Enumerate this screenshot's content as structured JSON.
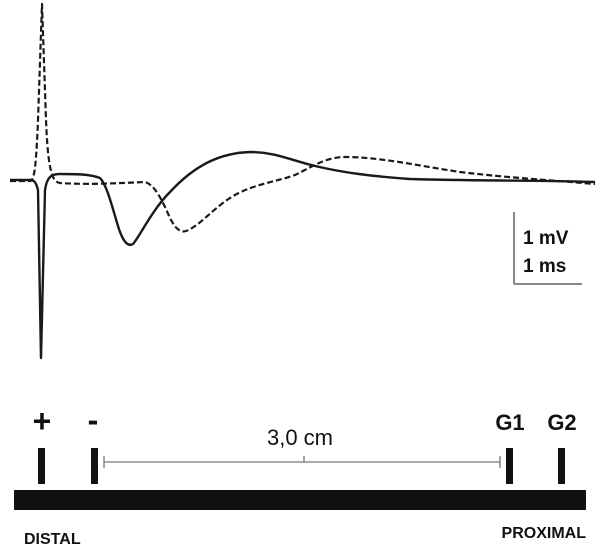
{
  "scale_bar": {
    "voltage": "1 mV",
    "time": "1 ms"
  },
  "electrodes": {
    "stim_plus": "+",
    "stim_minus": "-",
    "recording_1": "G1",
    "recording_2": "G2"
  },
  "distance": "3,0 cm",
  "nerve": {
    "left_label": "DISTAL",
    "right_label": "PROXIMAL"
  },
  "traces": [
    {
      "style": "solid",
      "color": "#1a1a1a"
    },
    {
      "style": "dashed",
      "color": "#1a1a1a"
    }
  ],
  "colors": {
    "ink": "#111111",
    "scale_bar": "#888888",
    "bracket": "#777777",
    "background": "#ffffff"
  }
}
